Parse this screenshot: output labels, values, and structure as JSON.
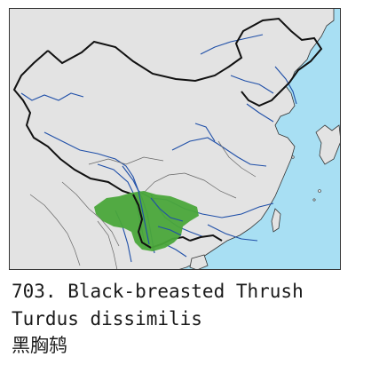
{
  "map": {
    "colors": {
      "land": "#e3e3e3",
      "sea": "#a8dff3",
      "river": "#1f4fa8",
      "border": "#111111",
      "range": "#4aa63a"
    }
  },
  "caption": {
    "title": "703. Black-breasted Thrush",
    "scientific_name": "Turdus dissimilis",
    "chinese_name": "黑胸鸫"
  }
}
